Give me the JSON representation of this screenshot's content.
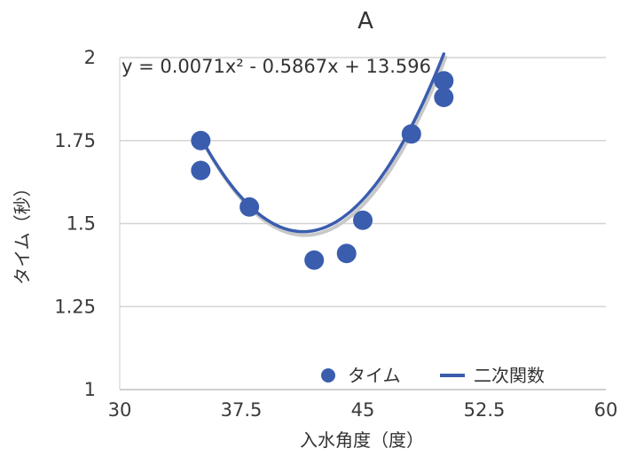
{
  "chart_data": {
    "type": "scatter",
    "title": "A",
    "xlabel": "入水角度（度）",
    "ylabel": "タイム（秒）",
    "xlim": [
      30,
      60
    ],
    "ylim": [
      1,
      2
    ],
    "x_ticks": [
      "30",
      "37.5",
      "45",
      "52.5",
      "60"
    ],
    "y_ticks": [
      "1",
      "1.25",
      "1.5",
      "1.75",
      "2"
    ],
    "equation": "y = 0.0071x² - 0.5867x + 13.596",
    "series": [
      {
        "name": "タイム",
        "color": "#3a5dae",
        "points": [
          {
            "x": 35,
            "y": 1.75
          },
          {
            "x": 35,
            "y": 1.66
          },
          {
            "x": 38,
            "y": 1.55
          },
          {
            "x": 42,
            "y": 1.39
          },
          {
            "x": 44,
            "y": 1.41
          },
          {
            "x": 45,
            "y": 1.51
          },
          {
            "x": 48,
            "y": 1.77
          },
          {
            "x": 50,
            "y": 1.93
          },
          {
            "x": 50,
            "y": 1.88
          }
        ]
      }
    ],
    "trendline": {
      "name": "二次関数",
      "color": "#3a5dae",
      "type": "polynomial",
      "coefficients": [
        0.0071,
        -0.5867,
        13.596
      ],
      "x_range": [
        35,
        50
      ]
    },
    "legend_position": "bottom-right",
    "grid": true
  }
}
